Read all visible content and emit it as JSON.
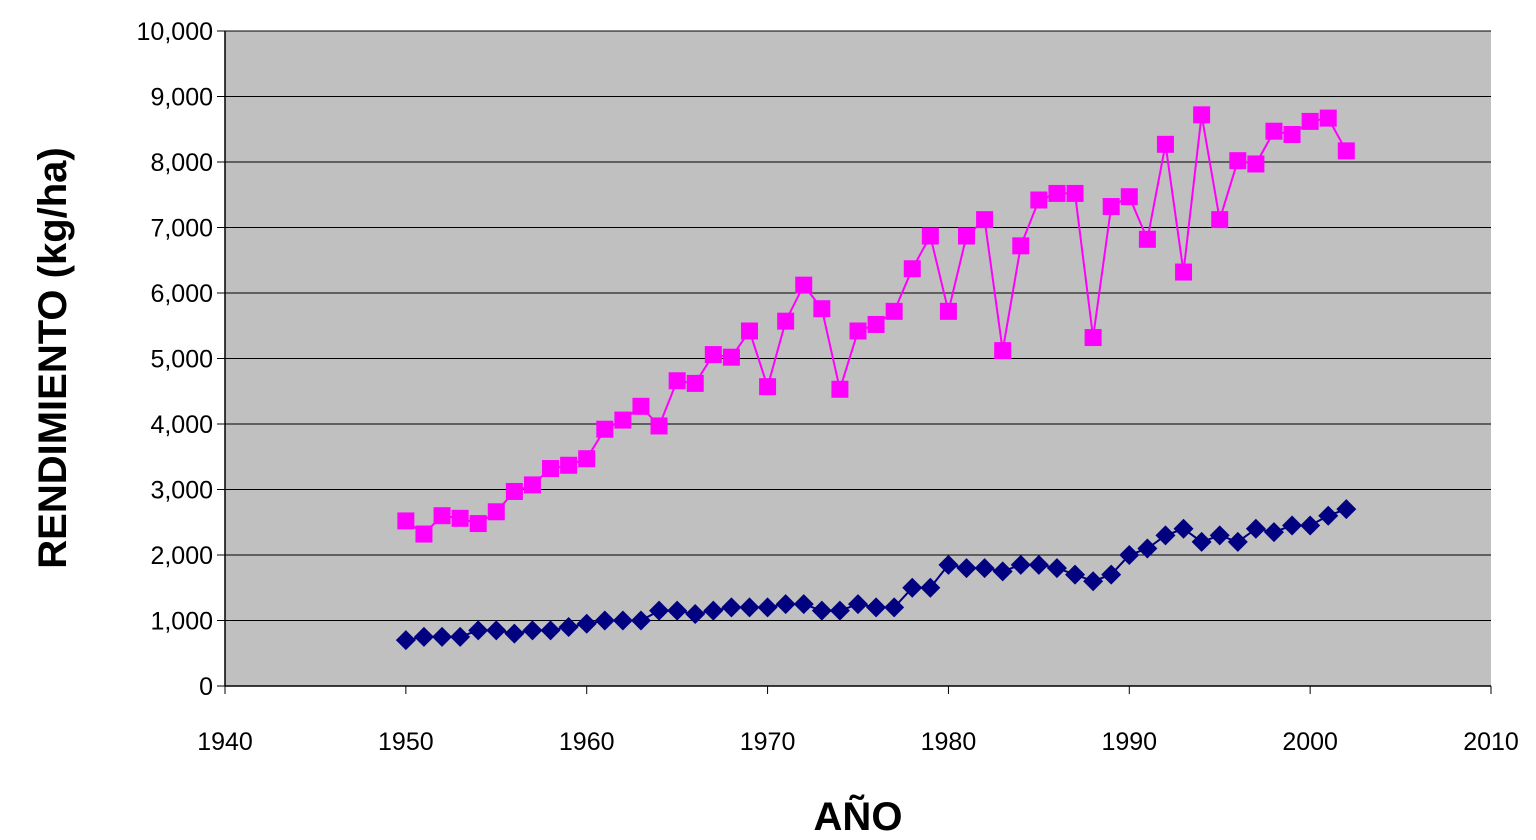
{
  "chart_data": {
    "type": "line",
    "title": "",
    "xlabel": "AÑO",
    "ylabel": "RENDIMIENTO (kg/ha)",
    "xlim": [
      1940,
      2010
    ],
    "ylim": [
      0,
      10000
    ],
    "x_ticks": [
      "1940",
      "1950",
      "1960",
      "1970",
      "1980",
      "1990",
      "2000",
      "2010"
    ],
    "y_ticks": [
      "0",
      "1,000",
      "2,000",
      "3,000",
      "4,000",
      "5,000",
      "6,000",
      "7,000",
      "8,000",
      "9,000",
      "10,000"
    ],
    "grid": true,
    "legend": "none",
    "plot_background": "#c0c0c0",
    "x": [
      1950,
      1951,
      1952,
      1953,
      1954,
      1955,
      1956,
      1957,
      1958,
      1959,
      1960,
      1961,
      1962,
      1963,
      1964,
      1965,
      1966,
      1967,
      1968,
      1969,
      1970,
      1971,
      1972,
      1973,
      1974,
      1975,
      1976,
      1977,
      1978,
      1979,
      1980,
      1981,
      1982,
      1983,
      1984,
      1985,
      1986,
      1987,
      1988,
      1989,
      1990,
      1991,
      1992,
      1993,
      1994,
      1995,
      1996,
      1997,
      1998,
      1999,
      2000,
      2001,
      2002
    ],
    "series": [
      {
        "marker": "square",
        "color": "#ff00ff",
        "values": [
          2520,
          2320,
          2600,
          2560,
          2480,
          2660,
          2970,
          3070,
          3320,
          3370,
          3470,
          3920,
          4060,
          4270,
          3970,
          4660,
          4620,
          5060,
          5020,
          5420,
          4570,
          5570,
          6120,
          5760,
          4530,
          5420,
          5520,
          5720,
          6370,
          6870,
          5720,
          6870,
          7120,
          5120,
          6720,
          7420,
          7520,
          7520,
          5320,
          7320,
          7470,
          6820,
          8270,
          6320,
          8720,
          7120,
          8020,
          7970,
          8470,
          8420,
          8620,
          8670,
          8170
        ]
      },
      {
        "marker": "diamond",
        "color": "#000080",
        "values": [
          700,
          750,
          750,
          750,
          850,
          850,
          800,
          850,
          850,
          900,
          950,
          1000,
          1000,
          1000,
          1150,
          1150,
          1100,
          1150,
          1200,
          1200,
          1200,
          1250,
          1250,
          1150,
          1150,
          1250,
          1200,
          1200,
          1500,
          1500,
          1850,
          1800,
          1800,
          1750,
          1850,
          1850,
          1800,
          1700,
          1600,
          1700,
          2000,
          2100,
          2300,
          2400,
          2200,
          2300,
          2200,
          2400,
          2350,
          2450,
          2450,
          2600,
          2700
        ]
      }
    ]
  }
}
